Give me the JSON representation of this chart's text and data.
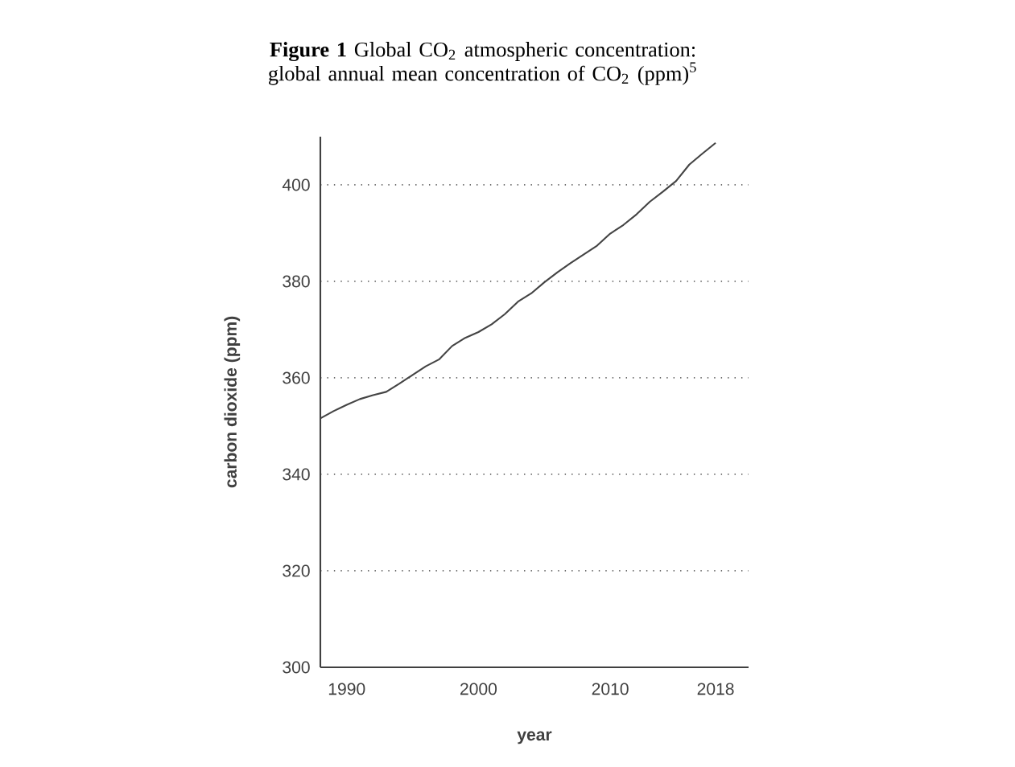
{
  "chart_data": {
    "type": "line",
    "title": "**Figure 1** Global CO$_{2}$ atmospheric concentration: global annual mean concentration of CO$_{2}$ (ppm)$^{5}$",
    "xlabel": "year",
    "ylabel": "carbon dioxide (ppm)",
    "x": [
      1988,
      1989,
      1990,
      1991,
      1992,
      1993,
      1994,
      1995,
      1996,
      1997,
      1998,
      1999,
      2000,
      2001,
      2002,
      2003,
      2004,
      2005,
      2006,
      2007,
      2008,
      2009,
      2010,
      2011,
      2012,
      2013,
      2014,
      2015,
      2016,
      2017,
      2018
    ],
    "values": [
      351.6,
      353.1,
      354.4,
      355.6,
      356.4,
      357.1,
      358.8,
      360.6,
      362.4,
      363.8,
      366.6,
      368.3,
      369.5,
      371.1,
      373.2,
      375.8,
      377.5,
      379.8,
      381.9,
      383.8,
      385.6,
      387.4,
      389.9,
      391.7,
      393.9,
      396.5,
      398.6,
      400.8,
      404.2,
      406.5,
      408.7
    ],
    "color": "#444444",
    "xlim": [
      1988,
      2020.5
    ],
    "ylim": [
      300,
      410
    ],
    "xticks": [
      1990,
      2000,
      2010,
      2018
    ],
    "yticks": [
      300,
      320,
      340,
      360,
      380,
      400
    ],
    "grid": "y",
    "marker": "none",
    "line_style": "solid"
  }
}
